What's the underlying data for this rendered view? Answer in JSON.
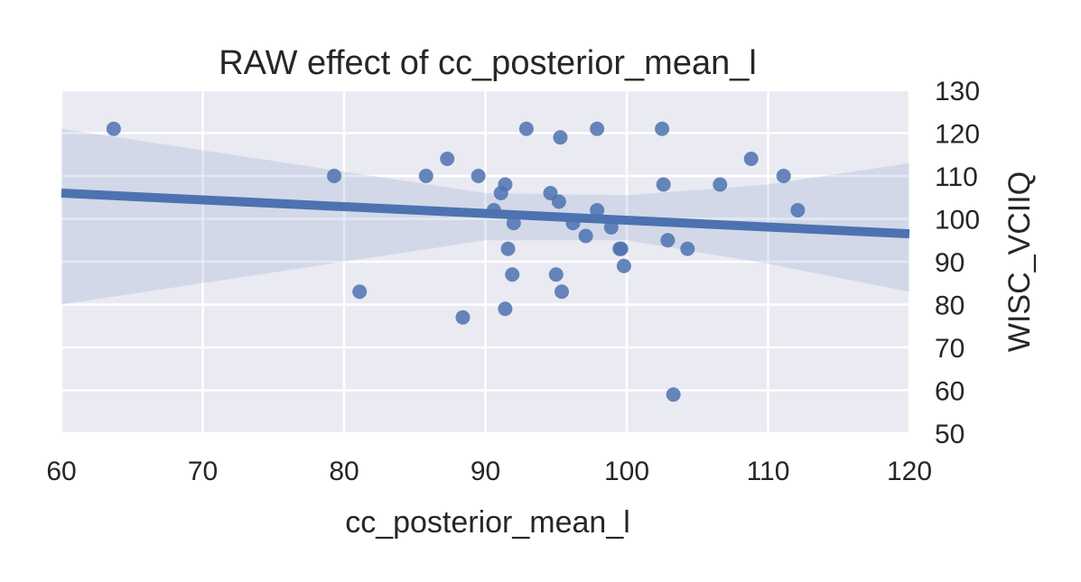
{
  "chart_data": {
    "type": "scatter",
    "title": "RAW effect of cc_posterior_mean_l",
    "xlabel": "cc_posterior_mean_l",
    "ylabel": "WISC_VCIIQ",
    "xlim": [
      60,
      120
    ],
    "ylim": [
      50,
      130
    ],
    "xticks": [
      "60",
      "70",
      "80",
      "90",
      "100",
      "110",
      "120"
    ],
    "yticks": [
      "50",
      "60",
      "70",
      "80",
      "90",
      "100",
      "110",
      "120",
      "130"
    ],
    "y_axis_position": "right",
    "grid": true,
    "colors": {
      "background": "#eaeaf2",
      "grid": "#ffffff",
      "points": "#4c72b0",
      "line": "#4c72b0",
      "band": "#4c72b0"
    },
    "points": [
      {
        "x": 63.7,
        "y": 121
      },
      {
        "x": 79.3,
        "y": 110
      },
      {
        "x": 81.1,
        "y": 83
      },
      {
        "x": 85.8,
        "y": 110
      },
      {
        "x": 87.3,
        "y": 114
      },
      {
        "x": 88.4,
        "y": 77
      },
      {
        "x": 89.5,
        "y": 110
      },
      {
        "x": 90.6,
        "y": 102
      },
      {
        "x": 91.1,
        "y": 106
      },
      {
        "x": 91.4,
        "y": 108
      },
      {
        "x": 91.4,
        "y": 79
      },
      {
        "x": 91.6,
        "y": 93
      },
      {
        "x": 91.9,
        "y": 87
      },
      {
        "x": 92.0,
        "y": 99
      },
      {
        "x": 92.9,
        "y": 121
      },
      {
        "x": 94.6,
        "y": 106
      },
      {
        "x": 95.0,
        "y": 87
      },
      {
        "x": 95.2,
        "y": 104
      },
      {
        "x": 95.3,
        "y": 119
      },
      {
        "x": 95.4,
        "y": 83
      },
      {
        "x": 96.2,
        "y": 99
      },
      {
        "x": 97.1,
        "y": 96
      },
      {
        "x": 97.9,
        "y": 121
      },
      {
        "x": 97.9,
        "y": 102
      },
      {
        "x": 98.9,
        "y": 98
      },
      {
        "x": 99.5,
        "y": 93
      },
      {
        "x": 99.6,
        "y": 93
      },
      {
        "x": 99.8,
        "y": 89
      },
      {
        "x": 102.5,
        "y": 121
      },
      {
        "x": 102.6,
        "y": 108
      },
      {
        "x": 102.9,
        "y": 95
      },
      {
        "x": 103.3,
        "y": 59
      },
      {
        "x": 104.3,
        "y": 93
      },
      {
        "x": 106.6,
        "y": 108
      },
      {
        "x": 108.8,
        "y": 114
      },
      {
        "x": 111.1,
        "y": 110
      },
      {
        "x": 112.1,
        "y": 102
      }
    ],
    "regression": {
      "x": [
        60,
        120
      ],
      "y": [
        106,
        96.5
      ]
    },
    "confidence_band": {
      "x": [
        60,
        80,
        90,
        100,
        110,
        120
      ],
      "upper": [
        121,
        111,
        106,
        105.5,
        108,
        113
      ],
      "lower": [
        80,
        90,
        95,
        95,
        89.5,
        83
      ]
    }
  }
}
